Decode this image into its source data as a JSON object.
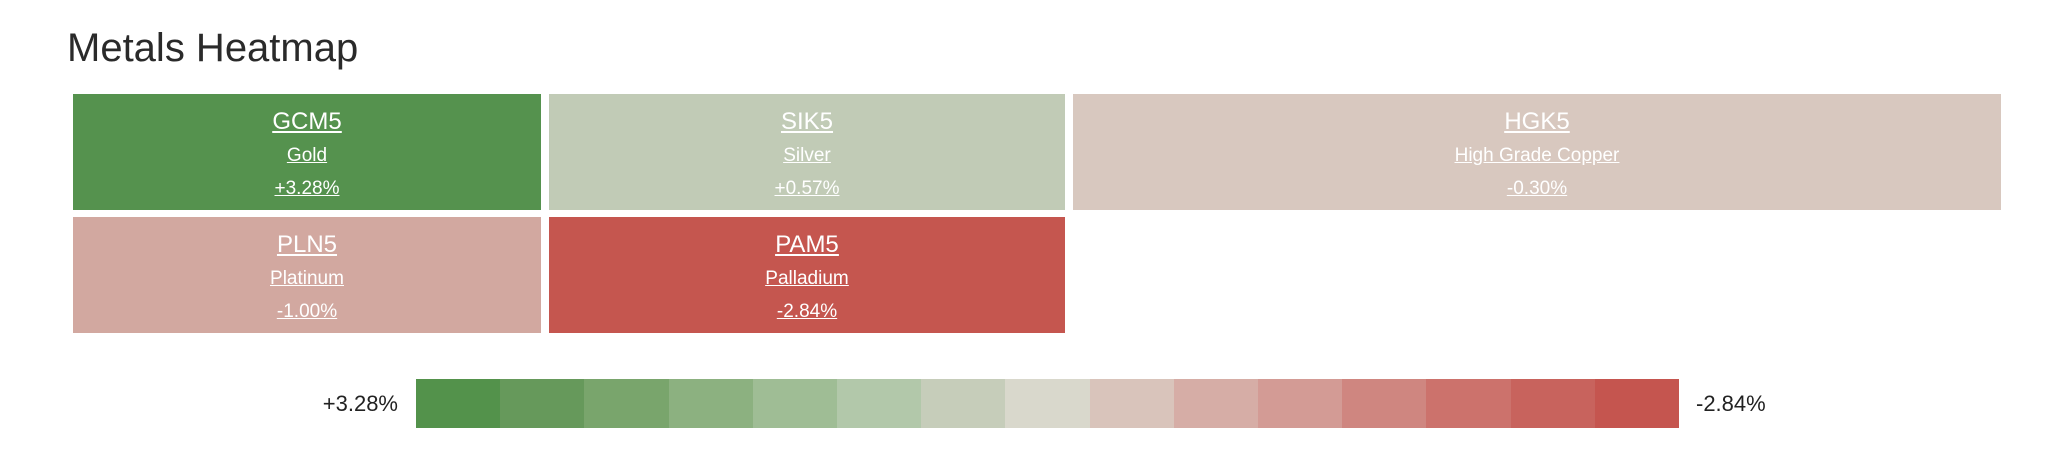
{
  "header": {
    "title": "Metals Heatmap"
  },
  "tiles": [
    {
      "symbol": "GCM5",
      "name": "Gold",
      "change": "+3.28%",
      "color": "#55924e"
    },
    {
      "symbol": "SIK5",
      "name": "Silver",
      "change": "+0.57%",
      "color": "#c1cbb6"
    },
    {
      "symbol": "HGK5",
      "name": "High Grade Copper",
      "change": "-0.30%",
      "color": "#d8c8bf"
    },
    {
      "symbol": "PLN5",
      "name": "Platinum",
      "change": "-1.00%",
      "color": "#d2a8a0"
    },
    {
      "symbol": "PAM5",
      "name": "Palladium",
      "change": "-2.84%",
      "color": "#c5564f"
    }
  ],
  "legend": {
    "start_label": "+3.28%",
    "end_label": "-2.84%",
    "colors": [
      "#53924b",
      "#66995b",
      "#79a56c",
      "#8cb180",
      "#9fbd95",
      "#b2c8aa",
      "#c6cdba",
      "#d9d8cc",
      "#d9c4bb",
      "#d6ada6",
      "#d39b95",
      "#cf8680",
      "#cc726c",
      "#c8635d",
      "#c5554f"
    ]
  }
}
